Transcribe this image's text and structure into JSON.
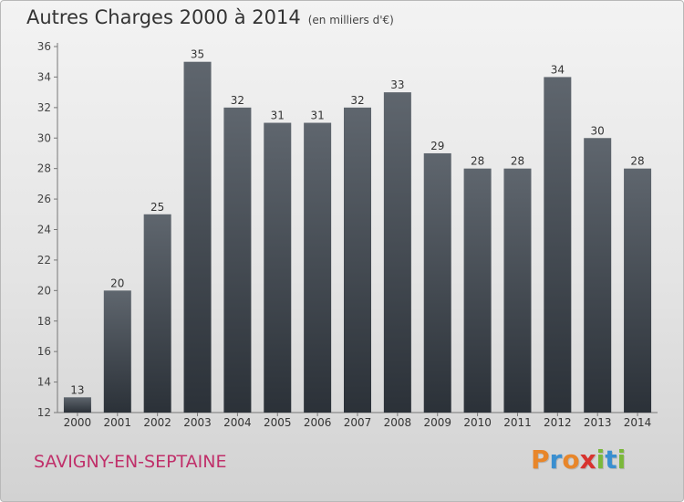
{
  "chart_data": {
    "type": "bar",
    "title": "Autres Charges 2000 à 2014",
    "subtitle": "(en milliers d'€)",
    "categories": [
      "2000",
      "2001",
      "2002",
      "2003",
      "2004",
      "2005",
      "2006",
      "2007",
      "2008",
      "2009",
      "2010",
      "2011",
      "2012",
      "2013",
      "2014"
    ],
    "values": [
      13,
      20,
      25,
      35,
      32,
      31,
      31,
      32,
      33,
      29,
      28,
      28,
      34,
      30,
      28
    ],
    "ylim": [
      12,
      36
    ],
    "yticks": [
      12,
      14,
      16,
      18,
      20,
      22,
      24,
      26,
      28,
      30,
      32,
      34,
      36
    ],
    "grid": false,
    "legend": "none",
    "bar_color_top": "#5f666e",
    "bar_color_bottom": "#2b3138"
  },
  "footer": {
    "city": "SAVIGNY-EN-SEPTAINE",
    "logo_letters": [
      "P",
      "r",
      "o",
      "x",
      "i",
      "t",
      "i"
    ],
    "logo_colors": [
      "#e8862a",
      "#3a8fd0",
      "#e8862a",
      "#d8332f",
      "#7bb83a",
      "#3a8fd0",
      "#7bb83a"
    ]
  }
}
